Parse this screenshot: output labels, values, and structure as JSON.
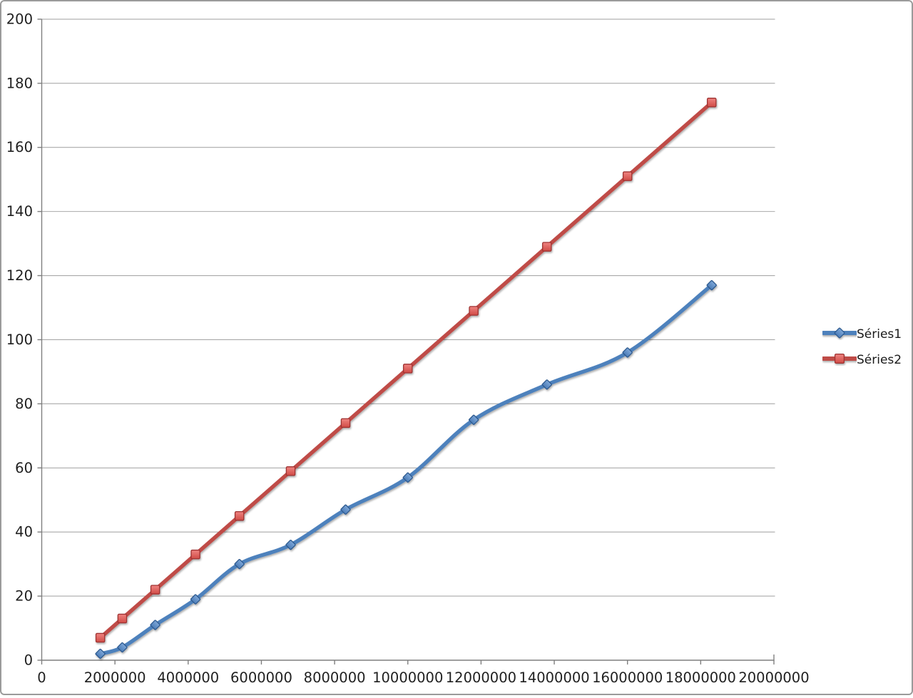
{
  "chart_data": {
    "type": "line",
    "title": "",
    "xlabel": "",
    "ylabel": "",
    "x": [
      1600000,
      2200000,
      3100000,
      4200000,
      5400000,
      6800000,
      8300000,
      10000000,
      11800000,
      13800000,
      16000000,
      18300000
    ],
    "series": [
      {
        "name": "Séries1",
        "marker": "diamond",
        "line_color": "#4e81bc",
        "marker_fill_top": "#7ea7d8",
        "marker_fill_bottom": "#4c7db8",
        "marker_stroke": "#2e5a8f",
        "values": [
          2,
          4,
          11,
          19,
          30,
          36,
          47,
          57,
          75,
          86,
          96,
          117
        ]
      },
      {
        "name": "Séries2",
        "marker": "square",
        "line_color": "#bf4b47",
        "marker_fill_top": "#ef8481",
        "marker_fill_bottom": "#d04b46",
        "marker_stroke": "#9e3330",
        "values": [
          7,
          13,
          22,
          33,
          45,
          59,
          74,
          91,
          109,
          129,
          151,
          174
        ]
      }
    ],
    "xlim": [
      0,
      20000000
    ],
    "ylim": [
      0,
      200
    ],
    "x_tick_labels": [
      "0",
      "2000000",
      "4000000",
      "6000000",
      "8000000",
      "10000000",
      "12000000",
      "14000000",
      "16000000",
      "18000000",
      "20000000"
    ],
    "y_tick_labels": [
      "0",
      "20",
      "40",
      "60",
      "80",
      "100",
      "120",
      "140",
      "160",
      "180",
      "200"
    ],
    "grid": "horizontal",
    "legend_position": "right",
    "smooth_lines": true
  },
  "colors": {
    "gridline": "#a9a9a9",
    "axis": "#7f7f7f",
    "tick_label": "#1f1f1f",
    "background": "#ffffff",
    "border": "#9b9b9b"
  }
}
